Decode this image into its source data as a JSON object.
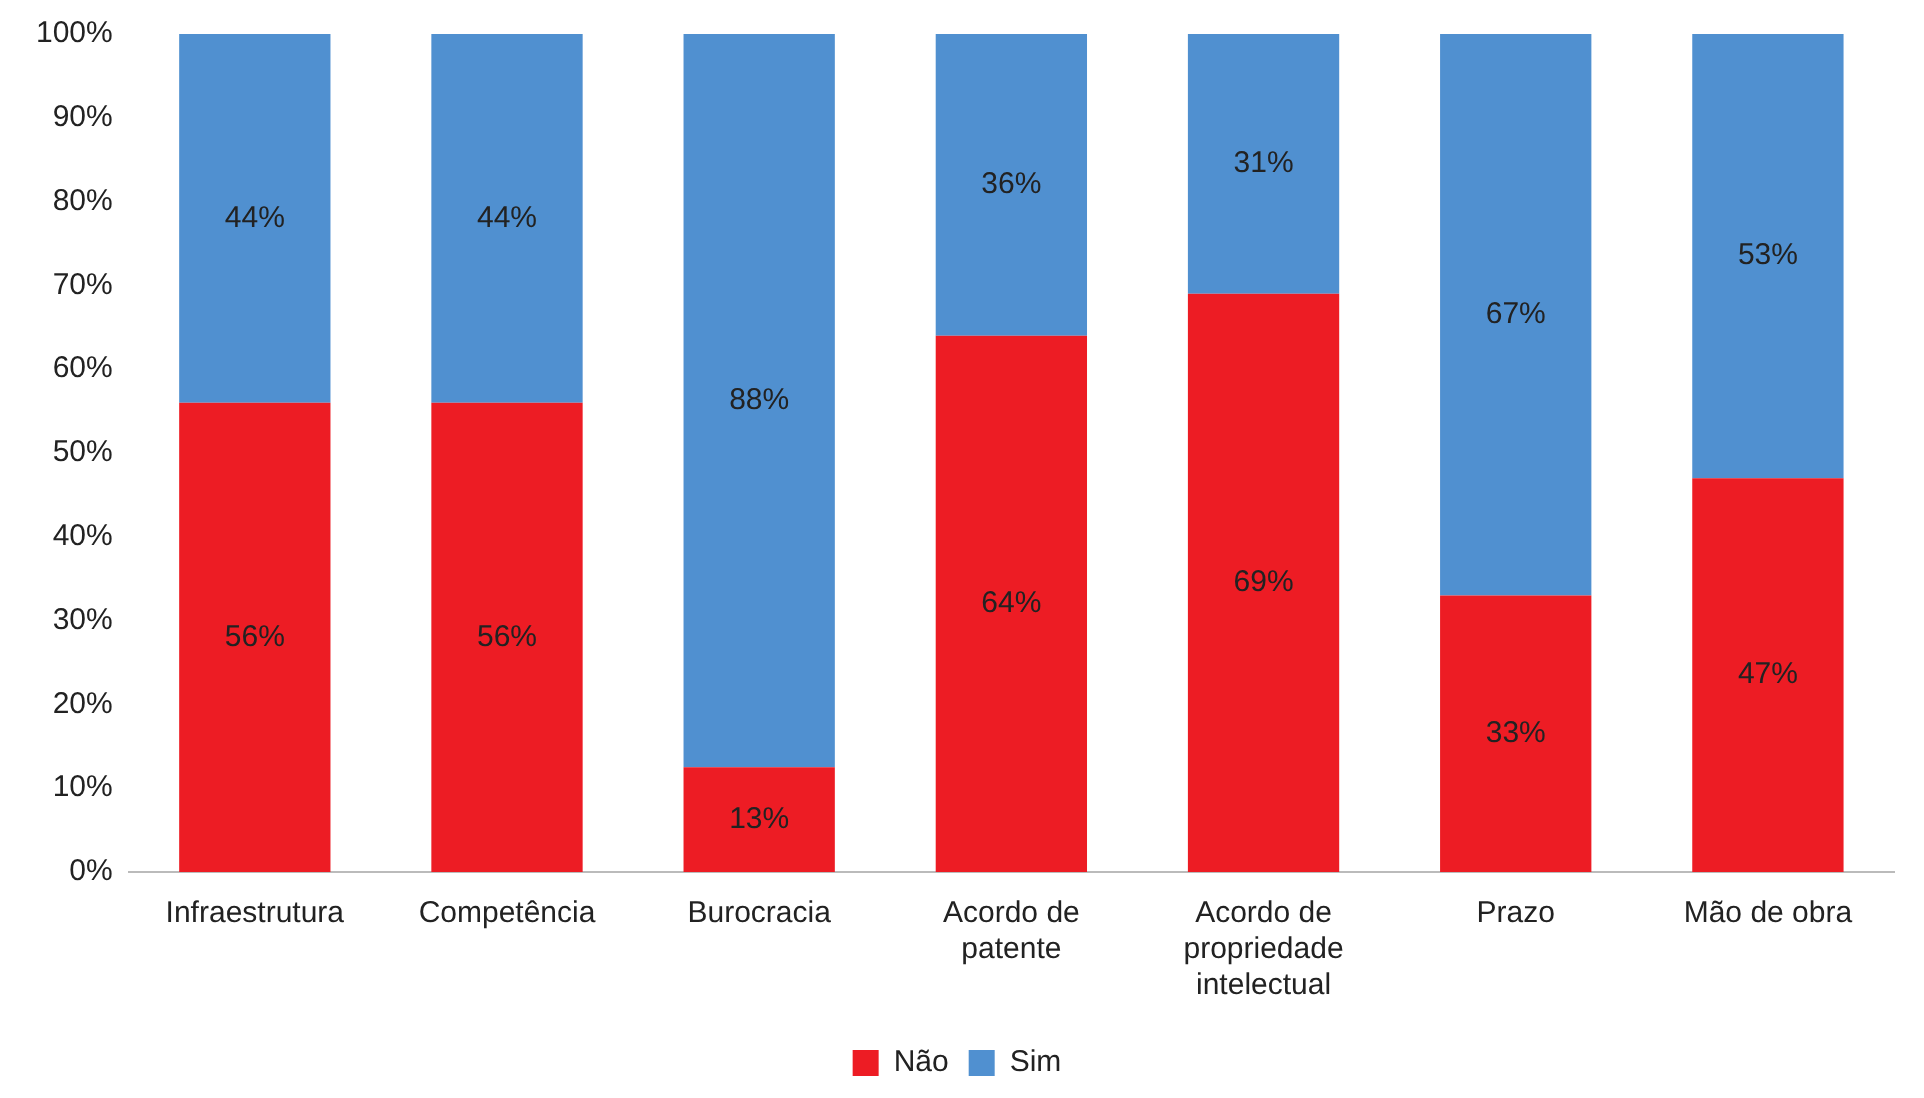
{
  "chart_data": {
    "type": "bar",
    "stacked": true,
    "categories": [
      "Infraestrutura",
      "Competência",
      "Burocracia",
      "Acordo de patente",
      "Acordo de propriedade intelectual",
      "Prazo",
      "Mão de obra"
    ],
    "series": [
      {
        "name": "Não",
        "color": "#ed1c24",
        "values": [
          56,
          56,
          12.5,
          64,
          69,
          33,
          47
        ],
        "value_labels": [
          "56%",
          "56%",
          "13%",
          "64%",
          "69%",
          "33%",
          "47%"
        ]
      },
      {
        "name": "Sim",
        "color": "#5090d0",
        "values": [
          44,
          44,
          87.5,
          36,
          31,
          67,
          53
        ],
        "value_labels": [
          "44%",
          "44%",
          "88%",
          "36%",
          "31%",
          "67%",
          "53%"
        ]
      }
    ],
    "ylim": [
      0,
      100
    ],
    "yticks": [
      {
        "value": 0,
        "label": "0%"
      },
      {
        "value": 10,
        "label": "10%"
      },
      {
        "value": 20,
        "label": "20%"
      },
      {
        "value": 30,
        "label": "30%"
      },
      {
        "value": 40,
        "label": "40%"
      },
      {
        "value": 50,
        "label": "50%"
      },
      {
        "value": 60,
        "label": "60%"
      },
      {
        "value": 70,
        "label": "70%"
      },
      {
        "value": 80,
        "label": "80%"
      },
      {
        "value": 90,
        "label": "90%"
      },
      {
        "value": 100,
        "label": "100%"
      }
    ],
    "grid": false,
    "legend": "bottom"
  }
}
